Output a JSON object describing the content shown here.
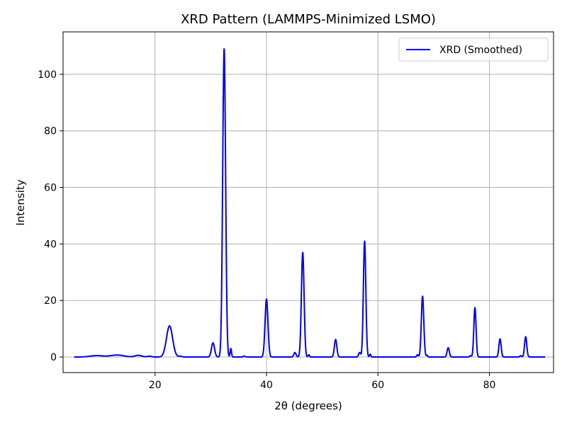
{
  "chart_data": {
    "type": "line",
    "title": "XRD Pattern (LAMMPS-Minimized LSMO)",
    "xlabel": "2θ (degrees)",
    "ylabel": "Intensity",
    "xlim": [
      3.5,
      91.5
    ],
    "ylim": [
      -5.5,
      115
    ],
    "xticks": [
      20,
      40,
      60,
      80
    ],
    "yticks": [
      0,
      20,
      40,
      60,
      80,
      100
    ],
    "grid": true,
    "legend_position": "top-right",
    "series": [
      {
        "name": "XRD (Smoothed)",
        "color": "#0000ee",
        "peaks": [
          {
            "x": 9.5,
            "height": 0.5,
            "width": 1.2
          },
          {
            "x": 13.2,
            "height": 0.7,
            "width": 1.2
          },
          {
            "x": 17.0,
            "height": 0.6,
            "width": 0.6
          },
          {
            "x": 19.0,
            "height": 0.3,
            "width": 0.4
          },
          {
            "x": 22.6,
            "height": 11.0,
            "width": 0.55
          },
          {
            "x": 24.5,
            "height": 0.3,
            "width": 0.3
          },
          {
            "x": 30.4,
            "height": 5.0,
            "width": 0.28
          },
          {
            "x": 32.4,
            "height": 109.0,
            "width": 0.26
          },
          {
            "x": 33.6,
            "height": 3.0,
            "width": 0.12
          },
          {
            "x": 36.0,
            "height": 0.3,
            "width": 0.2
          },
          {
            "x": 40.0,
            "height": 20.5,
            "width": 0.26
          },
          {
            "x": 45.1,
            "height": 1.6,
            "width": 0.2
          },
          {
            "x": 46.5,
            "height": 37.0,
            "width": 0.24
          },
          {
            "x": 47.6,
            "height": 0.8,
            "width": 0.12
          },
          {
            "x": 52.4,
            "height": 6.2,
            "width": 0.22
          },
          {
            "x": 56.7,
            "height": 1.6,
            "width": 0.18
          },
          {
            "x": 57.6,
            "height": 41.0,
            "width": 0.22
          },
          {
            "x": 58.6,
            "height": 1.0,
            "width": 0.12
          },
          {
            "x": 67.1,
            "height": 0.8,
            "width": 0.15
          },
          {
            "x": 68.0,
            "height": 21.5,
            "width": 0.22
          },
          {
            "x": 68.8,
            "height": 0.6,
            "width": 0.12
          },
          {
            "x": 72.6,
            "height": 3.3,
            "width": 0.2
          },
          {
            "x": 76.6,
            "height": 0.5,
            "width": 0.15
          },
          {
            "x": 77.4,
            "height": 17.5,
            "width": 0.2
          },
          {
            "x": 81.9,
            "height": 6.4,
            "width": 0.2
          },
          {
            "x": 85.6,
            "height": 0.5,
            "width": 0.15
          },
          {
            "x": 86.5,
            "height": 7.2,
            "width": 0.2
          }
        ],
        "x_range": [
          5.5,
          90
        ]
      }
    ]
  }
}
